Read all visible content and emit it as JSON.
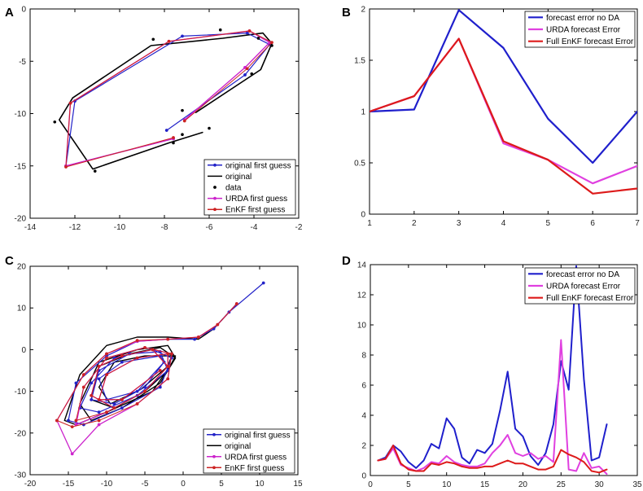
{
  "chart_data": [
    {
      "id": "A",
      "type": "line",
      "panel_label": "A",
      "xlim": [
        -14,
        -2
      ],
      "ylim": [
        -20,
        0
      ],
      "xticks": [
        -14,
        -12,
        -10,
        -8,
        -6,
        -4,
        -2
      ],
      "yticks": [
        -20,
        -15,
        -10,
        -5,
        0
      ],
      "legend": {
        "position": "bottom-right",
        "entries": [
          {
            "label": "original first guess",
            "color": "#2222c8",
            "style": "line-marker"
          },
          {
            "label": "original",
            "color": "#000000",
            "style": "line"
          },
          {
            "label": "data",
            "color": "#000000",
            "style": "marker"
          },
          {
            "label": "URDA first guess",
            "color": "#cc22cc",
            "style": "line-marker"
          },
          {
            "label": "EnKF first guess",
            "color": "#cc2222",
            "style": "line-marker"
          }
        ]
      },
      "series": [
        {
          "name": "original",
          "color": "#000000",
          "width": 1.6,
          "markers": false,
          "x": [
            -6.3,
            -7.8,
            -11.2,
            -12.7,
            -12.1,
            -8.6,
            -5.4,
            -3.6,
            -3.2,
            -3.7,
            -6.6
          ],
          "y": [
            -11.8,
            -12.8,
            -15.3,
            -10.6,
            -8.5,
            -3.5,
            -2.8,
            -2.3,
            -3.3,
            -5.8,
            -9.9
          ]
        },
        {
          "name": "original first guess",
          "color": "#2222c8",
          "width": 1.2,
          "markers": true,
          "x": [
            -7.9,
            -4.4,
            -3.3,
            -4.3,
            -7.2,
            -12.0,
            -12.4,
            -7.6
          ],
          "y": [
            -11.6,
            -6.3,
            -3.4,
            -2.3,
            -2.6,
            -8.8,
            -15.0,
            -12.4
          ]
        },
        {
          "name": "URDA first guess",
          "color": "#cc22cc",
          "width": 1.4,
          "markers": true,
          "x": [
            -7.1,
            -4.4,
            -3.3,
            -4.2,
            -7.8,
            -12.2,
            -12.4,
            -7.6
          ],
          "y": [
            -10.6,
            -5.6,
            -3.2,
            -2.1,
            -3.1,
            -9.0,
            -15.0,
            -12.4
          ]
        },
        {
          "name": "EnKF first guess",
          "color": "#cc2222",
          "width": 1.0,
          "markers": true,
          "x": [
            -7.1,
            -4.3,
            -3.2,
            -4.2,
            -7.8,
            -12.2,
            -12.4,
            -7.6
          ],
          "y": [
            -10.7,
            -5.7,
            -3.2,
            -2.1,
            -3.1,
            -9.0,
            -15.1,
            -12.3
          ]
        },
        {
          "name": "data",
          "color": "#000000",
          "width": 0,
          "markers": true,
          "marker_only": true,
          "x": [
            -12.9,
            -11.1,
            -7.2,
            -7.2,
            -7.6,
            -6.0,
            -5.5,
            -4.1,
            -3.8,
            -3.2,
            -8.5
          ],
          "y": [
            -10.8,
            -15.5,
            -9.7,
            -12.0,
            -12.8,
            -11.4,
            -2.0,
            -6.2,
            -2.8,
            -3.5,
            -2.9
          ]
        }
      ]
    },
    {
      "id": "B",
      "type": "line",
      "panel_label": "B",
      "xlim": [
        1,
        7
      ],
      "ylim": [
        0,
        2
      ],
      "xticks": [
        1,
        2,
        3,
        4,
        5,
        6,
        7
      ],
      "yticks": [
        0,
        0.5,
        1,
        1.5,
        2
      ],
      "legend": {
        "position": "top-right",
        "entries": [
          {
            "label": "forecast error no DA",
            "color": "#1f1fcc",
            "style": "line"
          },
          {
            "label": "URDA forecast Error",
            "color": "#e040e0",
            "style": "line"
          },
          {
            "label": "Full EnKF forecast Error",
            "color": "#dd1a1a",
            "style": "line"
          }
        ]
      },
      "series": [
        {
          "name": "forecast error no DA",
          "color": "#1f1fcc",
          "width": 2.2,
          "x": [
            1,
            2,
            3,
            4,
            5,
            6,
            7
          ],
          "y": [
            1.0,
            1.02,
            1.99,
            1.62,
            0.93,
            0.5,
            1.0
          ]
        },
        {
          "name": "URDA forecast Error",
          "color": "#e040e0",
          "width": 2.2,
          "x": [
            1,
            2,
            3,
            4,
            5,
            6,
            7
          ],
          "y": [
            1.0,
            1.15,
            1.71,
            0.69,
            0.53,
            0.3,
            0.47
          ]
        },
        {
          "name": "Full EnKF forecast Error",
          "color": "#dd1a1a",
          "width": 2.2,
          "x": [
            1,
            2,
            3,
            4,
            5,
            6,
            7
          ],
          "y": [
            1.0,
            1.15,
            1.71,
            0.71,
            0.53,
            0.2,
            0.25
          ]
        }
      ]
    },
    {
      "id": "C",
      "type": "line",
      "panel_label": "C",
      "xlim": [
        -20,
        15
      ],
      "ylim": [
        -30,
        20
      ],
      "xticks": [
        -20,
        -15,
        -10,
        -5,
        0,
        5,
        10,
        15
      ],
      "yticks": [
        -30,
        -20,
        -10,
        0,
        10,
        20
      ],
      "legend": {
        "position": "bottom-right",
        "entries": [
          {
            "label": "original first guess",
            "color": "#2222c8",
            "style": "line-marker"
          },
          {
            "label": "original",
            "color": "#000000",
            "style": "line"
          },
          {
            "label": "URDA first guess",
            "color": "#cc22cc",
            "style": "line-marker"
          },
          {
            "label": "EnKF first guess",
            "color": "#cc2222",
            "style": "line-marker"
          }
        ]
      },
      "series": [
        {
          "name": "original",
          "color": "#000000",
          "width": 1.4,
          "markers": false,
          "x": [
            7,
            4,
            2,
            -2,
            -6,
            -10,
            -13.5,
            -15.5,
            -14,
            -10,
            -4,
            -1,
            -2,
            -6,
            -11,
            -13.5,
            -12,
            -8,
            -3,
            -1,
            -3,
            -7,
            -11,
            -12,
            -9,
            -5,
            -2,
            -1,
            -5,
            -9,
            -11,
            -9.5,
            -5.5,
            -2,
            -1.5
          ],
          "y": [
            11,
            5,
            2.5,
            3,
            3,
            1,
            -6,
            -17,
            -18,
            -15,
            -10,
            -2,
            1,
            0,
            -3,
            -13,
            -17,
            -14,
            -8,
            -2,
            0.5,
            -1,
            -4,
            -12,
            -14,
            -10,
            -5,
            -1.5,
            -1.5,
            -3,
            -9,
            -13,
            -9.5,
            -4,
            -1.5
          ]
        },
        {
          "name": "original first guess",
          "color": "#2222c8",
          "width": 1.2,
          "markers": true,
          "x": [
            10.5,
            6,
            4,
            1.5,
            -2,
            -6,
            -10,
            -14,
            -15,
            -13,
            -8,
            -3,
            -1.5,
            -4,
            -9,
            -12,
            -13.5,
            -11,
            -6,
            -2,
            -3,
            -7,
            -11,
            -12,
            -9,
            -5,
            -2.5,
            -3,
            -8,
            -11,
            -10,
            -6,
            -2.5
          ],
          "y": [
            16,
            9,
            5,
            2.5,
            2.5,
            2,
            -1.5,
            -8,
            -17,
            -18,
            -14,
            -9,
            -2,
            0,
            -2,
            -8,
            -14,
            -15,
            -11,
            -5,
            -0.5,
            -1,
            -5,
            -12,
            -13,
            -9,
            -3,
            -1.5,
            -3,
            -7,
            -12,
            -10,
            -3
          ]
        },
        {
          "name": "URDA first guess",
          "color": "#cc22cc",
          "width": 1.3,
          "markers": true,
          "x": [
            7,
            4.5,
            2,
            -2,
            -6,
            -10,
            -13,
            -16.5,
            -14.5,
            -11,
            -6,
            -2,
            -1.5,
            -5,
            -10,
            -13,
            -14,
            -10,
            -5,
            -2,
            -4,
            -8,
            -11,
            -12,
            -9,
            -5,
            -2,
            -2,
            -6,
            -10,
            -11,
            -8,
            -3
          ],
          "y": [
            11,
            6,
            3,
            2.5,
            2,
            -1,
            -6,
            -17,
            -25,
            -18,
            -13,
            -7,
            -1,
            0.5,
            -2,
            -9,
            -18,
            -15,
            -10,
            -4,
            0,
            -1.5,
            -4,
            -11,
            -14,
            -10,
            -4,
            -1,
            -2,
            -6,
            -12,
            -12,
            -5
          ]
        },
        {
          "name": "EnKF first guess",
          "color": "#cc2222",
          "width": 1.0,
          "markers": true,
          "x": [
            7,
            4.5,
            2,
            -2,
            -6,
            -10,
            -13,
            -16.5,
            -14.5,
            -11,
            -6,
            -2,
            -1.5,
            -5,
            -10,
            -13,
            -14,
            -10,
            -5,
            -2,
            -4,
            -8,
            -11,
            -12,
            -9,
            -5,
            -2,
            -2,
            -6,
            -10,
            -11,
            -8,
            -3
          ],
          "y": [
            11,
            6,
            3,
            2.5,
            2.2,
            -1,
            -6,
            -17,
            -18.5,
            -17,
            -13,
            -7,
            -1,
            0.5,
            -2,
            -9,
            -17,
            -15,
            -10,
            -4,
            0,
            -1.5,
            -4,
            -11,
            -14,
            -10,
            -4,
            -1,
            -2,
            -6,
            -12,
            -12,
            -5
          ]
        }
      ]
    },
    {
      "id": "D",
      "type": "line",
      "panel_label": "D",
      "xlim": [
        0,
        35
      ],
      "ylim": [
        0,
        14
      ],
      "xticks": [
        0,
        5,
        10,
        15,
        20,
        25,
        30,
        35
      ],
      "yticks": [
        0,
        2,
        4,
        6,
        8,
        10,
        12,
        14
      ],
      "legend": {
        "position": "top-right",
        "entries": [
          {
            "label": "forecast error no DA",
            "color": "#1f1fcc",
            "style": "line"
          },
          {
            "label": "URDA forecast Error",
            "color": "#e040e0",
            "style": "line"
          },
          {
            "label": "Full EnKF forecast Error",
            "color": "#dd1a1a",
            "style": "line"
          }
        ]
      },
      "series": [
        {
          "name": "forecast error no DA",
          "color": "#1f1fcc",
          "width": 2.0,
          "x": [
            1,
            2,
            3,
            4,
            5,
            6,
            7,
            8,
            9,
            10,
            11,
            12,
            13,
            14,
            15,
            16,
            17,
            18,
            19,
            20,
            21,
            22,
            23,
            24,
            25,
            26,
            27,
            28,
            29,
            30,
            31
          ],
          "y": [
            1.0,
            1.2,
            2.0,
            1.6,
            0.9,
            0.5,
            1.0,
            2.1,
            1.8,
            3.8,
            3.1,
            1.2,
            0.8,
            1.7,
            1.5,
            2.1,
            4.3,
            6.9,
            3.1,
            2.6,
            1.3,
            0.7,
            1.5,
            3.4,
            7.6,
            5.7,
            13.9,
            6.4,
            1.0,
            1.2,
            3.4
          ]
        },
        {
          "name": "URDA forecast Error",
          "color": "#e040e0",
          "width": 2.0,
          "x": [
            1,
            2,
            3,
            4,
            5,
            6,
            7,
            8,
            9,
            10,
            11,
            12,
            13,
            14,
            15,
            16,
            17,
            18,
            19,
            20,
            21,
            22,
            23,
            24,
            25,
            26,
            27,
            28,
            29,
            30,
            31
          ],
          "y": [
            1.0,
            1.1,
            1.8,
            0.7,
            0.5,
            0.3,
            0.5,
            0.9,
            0.8,
            1.3,
            0.9,
            0.7,
            0.6,
            0.6,
            0.8,
            1.5,
            2.0,
            2.7,
            1.5,
            1.3,
            1.5,
            1.1,
            1.3,
            0.9,
            9.0,
            0.4,
            0.3,
            1.5,
            0.5,
            0.6,
            0.1
          ]
        },
        {
          "name": "Full EnKF forecast Error",
          "color": "#dd1a1a",
          "width": 2.0,
          "x": [
            1,
            2,
            3,
            4,
            5,
            6,
            7,
            8,
            9,
            10,
            11,
            12,
            13,
            14,
            15,
            16,
            17,
            18,
            19,
            20,
            21,
            22,
            23,
            24,
            25,
            26,
            27,
            28,
            29,
            30,
            31
          ],
          "y": [
            1.0,
            1.1,
            2.0,
            0.8,
            0.4,
            0.3,
            0.3,
            0.8,
            0.7,
            0.9,
            0.8,
            0.6,
            0.5,
            0.5,
            0.6,
            0.6,
            0.8,
            1.0,
            0.8,
            0.8,
            0.6,
            0.4,
            0.4,
            0.6,
            1.7,
            1.4,
            1.2,
            0.9,
            0.3,
            0.2,
            0.4
          ]
        }
      ]
    }
  ]
}
